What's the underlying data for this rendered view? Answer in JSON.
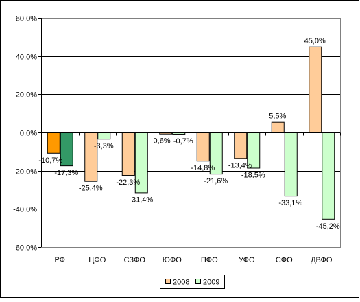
{
  "chart_data": {
    "type": "bar",
    "categories": [
      "РФ",
      "ЦФО",
      "СЗФО",
      "ЮФО",
      "ПФО",
      "УФО",
      "СФО",
      "ДВФО"
    ],
    "series": [
      {
        "name": "2008",
        "values": [
          -10.7,
          -25.4,
          -22.3,
          -0.6,
          -14.8,
          -13.4,
          5.5,
          45.0
        ],
        "labels": [
          "-10,7%",
          "-25,4%",
          "-22,3%",
          "-0,6%",
          "-14,8%",
          "-13,4%",
          "5,5%",
          "45,0%"
        ],
        "color": "#FFCC99",
        "highlight_color": "#FF9900"
      },
      {
        "name": "2009",
        "values": [
          -17.3,
          -3.3,
          -31.4,
          -0.7,
          -21.6,
          -18.5,
          -33.1,
          -45.2
        ],
        "labels": [
          "-17,3%",
          "-3,3%",
          "-31,4%",
          "-0,7%",
          "-21,6%",
          "-18,5%",
          "-33,1%",
          "-45,2%"
        ],
        "color": "#CCFFCC",
        "highlight_color": "#339966"
      }
    ],
    "highlight_category": "РФ",
    "y_ticks": [
      60,
      40,
      20,
      0,
      -20,
      -40,
      -60
    ],
    "y_tick_labels": [
      "60,0%",
      "40,0%",
      "20,0%",
      "0,0%",
      "-20,0%",
      "-40,0%",
      "-60,0%"
    ],
    "ylim": [
      -60,
      60
    ],
    "grid": true,
    "legend_position": "bottom"
  }
}
